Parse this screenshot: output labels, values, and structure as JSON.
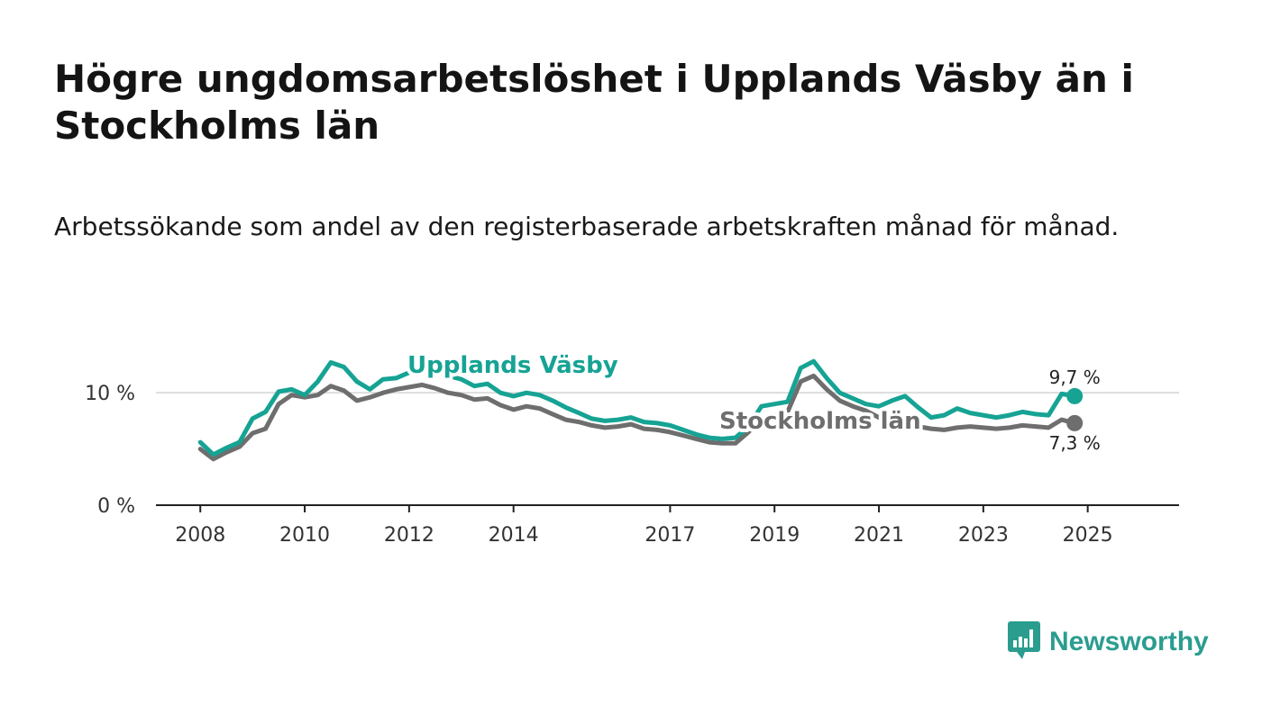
{
  "title": "Högre ungdomsarbetslöshet i Upplands Väsby än i Stockholms län",
  "subtitle": "Arbetssökande som andel av den registerbaserade arbetskraften månad för månad.",
  "brand": {
    "name": "Newsworthy",
    "color": "#2a9d8f"
  },
  "chart_data": {
    "type": "line",
    "x_start": 2008.0,
    "x_step": 0.25,
    "xlim": [
      2007.15,
      2026.75
    ],
    "ylim": [
      0,
      14.5
    ],
    "grid": true,
    "x_ticks": [
      2008,
      2010,
      2012,
      2014,
      2017,
      2019,
      2021,
      2023,
      2025
    ],
    "x_tick_labels": [
      "2008",
      "2010",
      "2012",
      "2014",
      "2017",
      "2019",
      "2021",
      "2023",
      "2025"
    ],
    "y_ticks": [
      0,
      10
    ],
    "y_tick_labels": [
      "0 %",
      "10 %"
    ],
    "series": [
      {
        "name": "Upplands Väsby",
        "label": "Upplands Väsby",
        "color": "#16a394",
        "end_label": "9,7 %",
        "values": [
          5.6,
          4.5,
          5.1,
          5.6,
          7.7,
          8.3,
          10.1,
          10.3,
          9.8,
          11.0,
          12.7,
          12.3,
          11.0,
          10.3,
          11.2,
          11.3,
          11.8,
          12.5,
          12.0,
          11.5,
          11.2,
          10.6,
          10.8,
          10.0,
          9.7,
          10.0,
          9.8,
          9.3,
          8.7,
          8.2,
          7.7,
          7.5,
          7.6,
          7.8,
          7.4,
          7.3,
          7.1,
          6.7,
          6.3,
          6.0,
          5.9,
          6.0,
          7.0,
          8.8,
          9.0,
          9.2,
          12.2,
          12.8,
          11.3,
          10.0,
          9.5,
          9.0,
          8.8,
          9.3,
          9.7,
          8.7,
          7.8,
          8.0,
          8.6,
          8.2,
          8.0,
          7.8,
          8.0,
          8.3,
          8.1,
          8.0,
          9.9,
          9.7
        ]
      },
      {
        "name": "Stockholms län",
        "label": "Stockholms län",
        "color": "#6e6e6e",
        "end_label": "7,3 %",
        "values": [
          5.0,
          4.1,
          4.7,
          5.2,
          6.4,
          6.8,
          9.0,
          9.8,
          9.6,
          9.8,
          10.6,
          10.2,
          9.3,
          9.6,
          10.0,
          10.3,
          10.5,
          10.7,
          10.4,
          10.0,
          9.8,
          9.4,
          9.5,
          8.9,
          8.5,
          8.8,
          8.6,
          8.1,
          7.6,
          7.4,
          7.1,
          6.9,
          7.0,
          7.2,
          6.8,
          6.7,
          6.5,
          6.2,
          5.9,
          5.6,
          5.5,
          5.5,
          6.5,
          7.7,
          8.0,
          8.3,
          11.0,
          11.5,
          10.3,
          9.3,
          8.8,
          8.4,
          7.8,
          7.4,
          7.3,
          7.0,
          6.8,
          6.7,
          6.9,
          7.0,
          6.9,
          6.8,
          6.9,
          7.1,
          7.0,
          6.9,
          7.6,
          7.3
        ]
      }
    ]
  }
}
